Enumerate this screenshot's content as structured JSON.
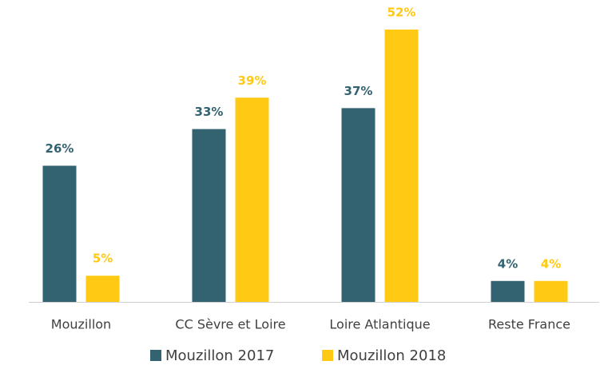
{
  "chart_data": {
    "type": "bar",
    "categories": [
      "Mouzillon",
      "CC Sèvre et Loire",
      "Loire Atlantique",
      "Reste France"
    ],
    "series": [
      {
        "name": "Mouzillon 2017",
        "color": "#336270",
        "values": [
          26,
          33,
          37,
          4
        ],
        "value_labels": [
          "26%",
          "33%",
          "37%",
          "4%"
        ]
      },
      {
        "name": "Mouzillon 2018",
        "color": "#FFC914",
        "values": [
          5,
          39,
          52,
          4
        ],
        "value_labels": [
          "5%",
          "39%",
          "52%",
          "4%"
        ]
      }
    ],
    "legend": "bottom"
  }
}
